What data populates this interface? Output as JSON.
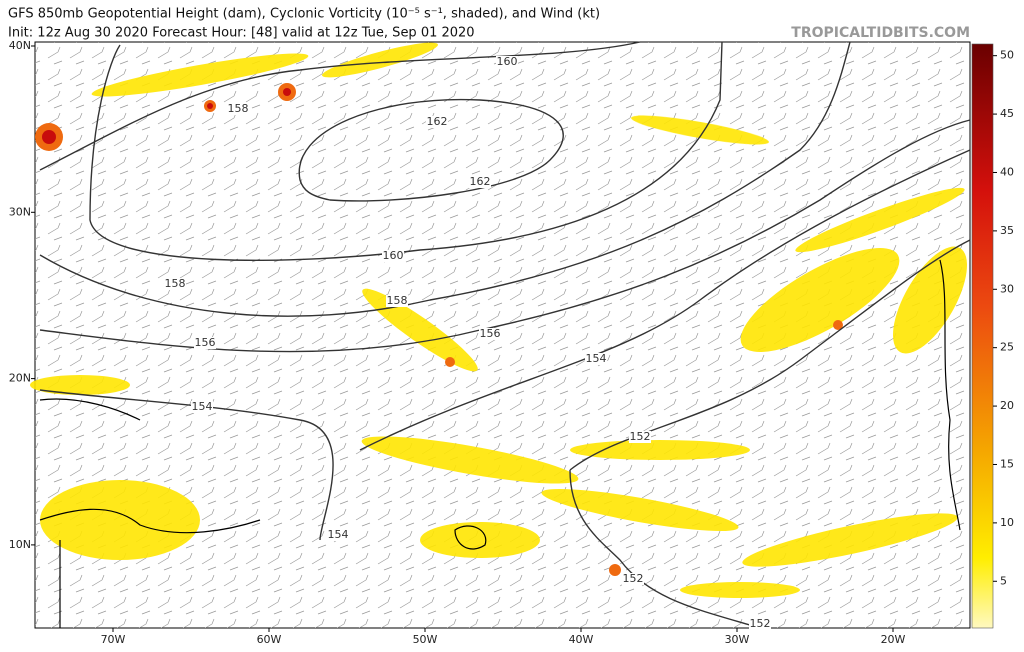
{
  "header": {
    "title": "GFS 850mb Geopotential Height (dam), Cyclonic Vorticity (10⁻⁵ s⁻¹, shaded), and Wind (kt)",
    "subtitle": "Init: 12z Aug 30 2020   Forecast Hour: [48]   valid at 12z Tue, Sep 01 2020",
    "source": "TROPICALTIDBITS.COM"
  },
  "map": {
    "lat_labels": [
      "40N",
      "30N",
      "20N",
      "10N"
    ],
    "lon_labels": [
      "70W",
      "60W",
      "50W",
      "40W",
      "30W",
      "20W"
    ],
    "contour_labels": [
      160,
      162,
      162,
      158,
      160,
      158,
      158,
      156,
      156,
      154,
      154,
      152,
      154,
      152,
      152
    ]
  },
  "colorbar": {
    "range": [
      1,
      51
    ],
    "ticks": [
      5,
      10,
      15,
      20,
      25,
      30,
      35,
      40,
      45,
      50
    ]
  }
}
